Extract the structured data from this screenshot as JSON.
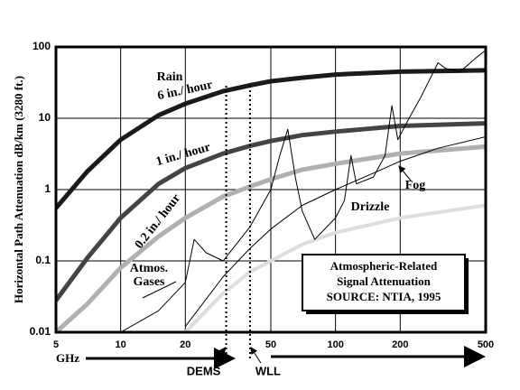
{
  "chart_data": {
    "type": "line",
    "ylabel": "Horizontal Path Attenuation dB/km (3280 ft.)",
    "xlabel": "GHz",
    "xlog": true,
    "ylog": true,
    "grid": true,
    "xlim": [
      5,
      500
    ],
    "ylim": [
      0.01,
      100
    ],
    "xticks": [
      5,
      10,
      20,
      50,
      100,
      200,
      500
    ],
    "yticks": [
      0.01,
      0.1,
      1,
      10,
      100
    ],
    "series": [
      {
        "name": "6 in./ hour",
        "color": "#1a1a1a",
        "x": [
          5,
          7,
          10,
          15,
          20,
          30,
          40,
          50,
          70,
          100,
          200,
          500
        ],
        "values": [
          0.55,
          1.8,
          5,
          11,
          16,
          24,
          29,
          33,
          37,
          41,
          45,
          47
        ]
      },
      {
        "name": "1 in./ hour",
        "color": "#444444",
        "x": [
          5,
          7,
          10,
          15,
          20,
          30,
          40,
          50,
          70,
          100,
          200,
          500
        ],
        "values": [
          0.028,
          0.11,
          0.4,
          1.2,
          2,
          3.2,
          4.1,
          4.8,
          5.8,
          6.5,
          7.8,
          8.5
        ]
      },
      {
        "name": "0.2 in./ hour",
        "color": "#b0b0b0",
        "x": [
          5,
          7,
          10,
          15,
          20,
          30,
          40,
          50,
          70,
          100,
          200,
          500
        ],
        "values": [
          0.01,
          0.025,
          0.08,
          0.22,
          0.4,
          0.8,
          1.1,
          1.4,
          1.9,
          2.3,
          3.2,
          4
        ]
      },
      {
        "name": "Drizzle",
        "color": "#dddddd",
        "x": [
          20,
          25,
          30,
          40,
          50,
          70,
          100,
          200,
          500
        ],
        "values": [
          0.01,
          0.02,
          0.035,
          0.07,
          0.1,
          0.17,
          0.25,
          0.4,
          0.6
        ]
      },
      {
        "name": "Fog",
        "color": "#000000",
        "x": [
          20,
          30,
          40,
          50,
          70,
          100,
          150,
          200,
          300,
          500
        ],
        "values": [
          0.012,
          0.06,
          0.15,
          0.28,
          0.6,
          1,
          1.7,
          2.5,
          3.8,
          5.5
        ]
      },
      {
        "name": "Atmos. Gases",
        "color": "#000000",
        "x": [
          10,
          15,
          20,
          22,
          25,
          30,
          40,
          50,
          55,
          60,
          65,
          70,
          80,
          100,
          110,
          118,
          125,
          150,
          170,
          183,
          195,
          220,
          250,
          300,
          325,
          380,
          450,
          500
        ],
        "values": [
          0.01,
          0.02,
          0.05,
          0.2,
          0.13,
          0.1,
          0.3,
          1,
          3,
          7,
          1.5,
          0.5,
          0.2,
          0.4,
          0.7,
          3,
          1.2,
          1.5,
          3,
          15,
          5,
          10,
          20,
          60,
          50,
          45,
          70,
          90
        ]
      }
    ],
    "annotations": [
      "Rain"
    ],
    "box_lines": [
      "Atmospheric-Related",
      "Signal Attenuation",
      "SOURCE: NTIA, 1995"
    ],
    "markers": [
      {
        "label": "DEMS",
        "x": 31
      },
      {
        "label": "WLL",
        "x": 40
      }
    ]
  }
}
